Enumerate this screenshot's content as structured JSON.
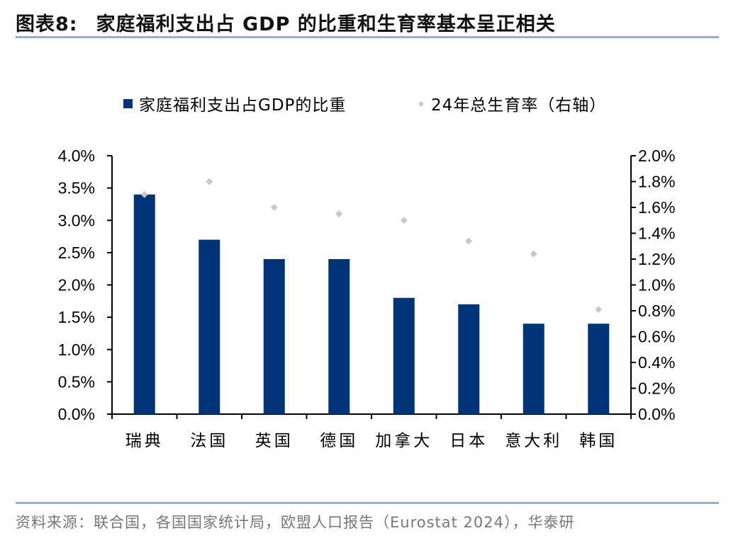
{
  "header": {
    "figure_label": "图表8:",
    "title": "家庭福利支出占 GDP 的比重和生育率基本呈正相关"
  },
  "footer": {
    "source": "资料来源：联合国，各国国家统计局，欧盟人口报告（Eurostat 2024），华泰研"
  },
  "chart_data": {
    "type": "bar+scatter",
    "categories": [
      "瑞典",
      "法国",
      "英国",
      "德国",
      "加拿大",
      "日本",
      "意大利",
      "韩国"
    ],
    "series": [
      {
        "name": "家庭福利支出占GDP的比重",
        "type": "bar",
        "axis": "left",
        "color": "#003478",
        "values": [
          3.4,
          2.7,
          2.4,
          2.4,
          1.8,
          1.7,
          1.4,
          1.4
        ]
      },
      {
        "name": "24年总生育率（右轴）",
        "type": "scatter",
        "axis": "right",
        "color": "#c8c8c8",
        "marker": "diamond",
        "values": [
          1.7,
          1.8,
          1.6,
          1.55,
          1.5,
          1.34,
          1.24,
          0.81
        ]
      }
    ],
    "left_axis": {
      "ylim": [
        0,
        4.0
      ],
      "ticks": [
        "0.0%",
        "0.5%",
        "1.0%",
        "1.5%",
        "2.0%",
        "2.5%",
        "3.0%",
        "3.5%",
        "4.0%"
      ]
    },
    "right_axis": {
      "ylim": [
        0,
        2.0
      ],
      "ticks": [
        "0.0%",
        "0.2%",
        "0.4%",
        "0.6%",
        "0.8%",
        "1.0%",
        "1.2%",
        "1.4%",
        "1.6%",
        "1.8%",
        "2.0%"
      ]
    },
    "legend_placement": "top",
    "grid": false
  }
}
